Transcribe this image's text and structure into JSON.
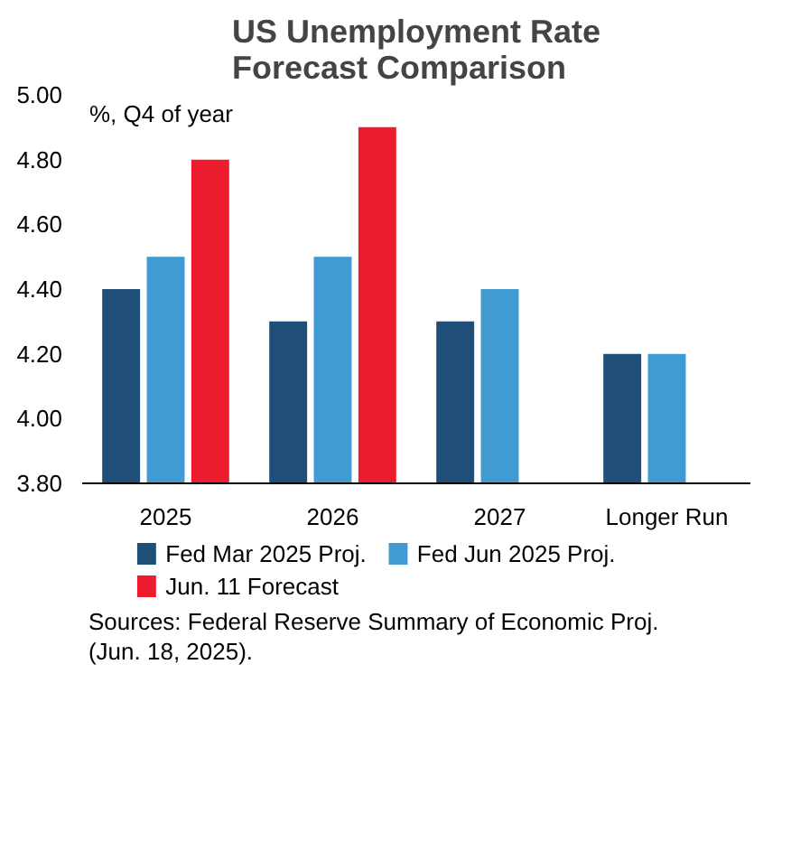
{
  "chart_data": {
    "type": "bar",
    "title": "US Unemployment Rate\nForecast Comparison",
    "ylabel": "%, Q4 of year",
    "categories": [
      "2025",
      "2026",
      "2027",
      "Longer Run"
    ],
    "series": [
      {
        "name": "Fed Mar 2025 Proj.",
        "color": "#1f4e79",
        "values": [
          4.4,
          4.3,
          4.3,
          4.2
        ]
      },
      {
        "name": "Fed Jun 2025 Proj.",
        "color": "#3f9bd1",
        "values": [
          4.5,
          4.5,
          4.4,
          4.2
        ]
      },
      {
        "name": "Jun. 11 Forecast",
        "color": "#ec1c2e",
        "values": [
          4.8,
          4.9,
          null,
          null
        ]
      }
    ],
    "ylim": [
      3.8,
      5.0
    ],
    "yticks": [
      {
        "value": 3.8,
        "label": "3.80"
      },
      {
        "value": 4.0,
        "label": "4.00"
      },
      {
        "value": 4.2,
        "label": "4.20"
      },
      {
        "value": 4.4,
        "label": "4.40"
      },
      {
        "value": 4.6,
        "label": "4.60"
      },
      {
        "value": 4.8,
        "label": "4.80"
      },
      {
        "value": 5.0,
        "label": "5.00"
      }
    ],
    "grid": false,
    "legend": "bottom",
    "annotations": [
      "Sources: Federal Reserve Summary of Economic Proj. (Jun. 18, 2025)."
    ]
  }
}
